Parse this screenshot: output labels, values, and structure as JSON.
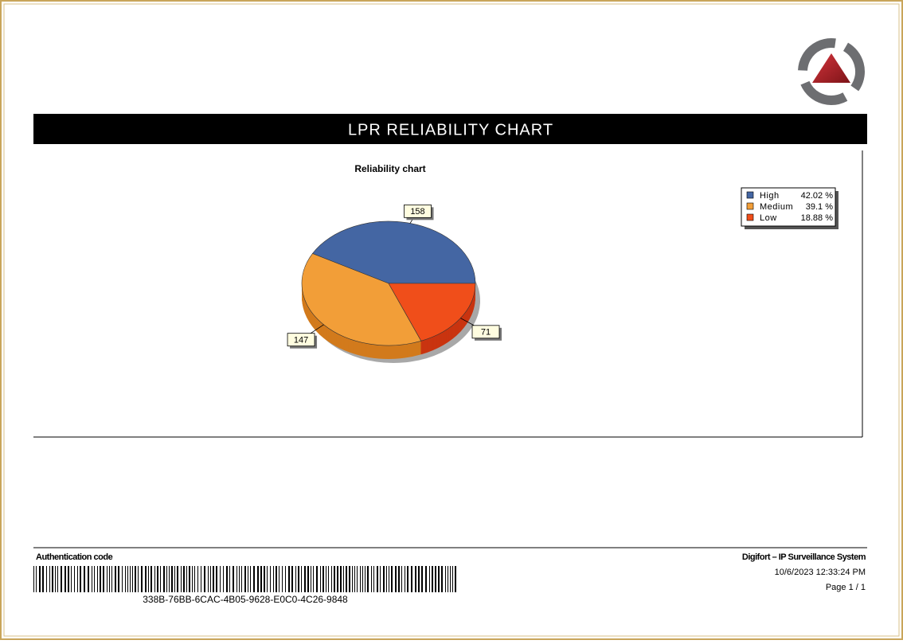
{
  "report_title": "LPR RELIABILITY CHART",
  "chart_data": {
    "type": "pie",
    "title": "Reliability chart",
    "categories": [
      "High",
      "Medium",
      "Low"
    ],
    "values": [
      158,
      147,
      71
    ],
    "percent_labels": [
      "42.02 %",
      "39.1 %",
      "18.88 %"
    ],
    "colors": [
      "#4466a3",
      "#f29e38",
      "#f04e1a"
    ],
    "side_colors": [
      "#2f4c80",
      "#d27a1c",
      "#c93410"
    ],
    "legend": "top-right"
  },
  "footer": {
    "auth_label": "Authentication code",
    "auth_code": "338B-76BB-6CAC-4B05-9628-E0C0-4C26-9848",
    "system": "Digifort – IP Surveillance System",
    "timestamp": "10/6/2023 12:33:24 PM",
    "page": "Page 1 / 1"
  }
}
